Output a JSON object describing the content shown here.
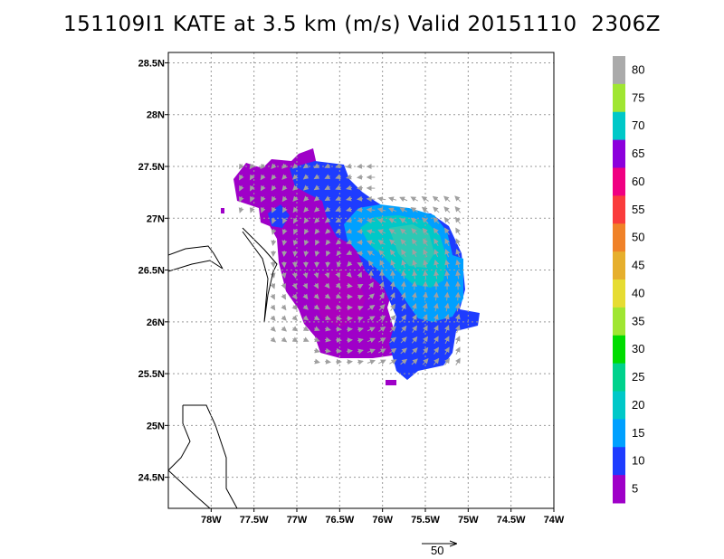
{
  "title": "151109I1 KATE at 3.5 km (m/s) Valid 20151110  2306Z",
  "map": {
    "lon_range": [
      -78.5,
      -74.0
    ],
    "lat_range": [
      24.2,
      28.6
    ],
    "x_ticks": [
      "78W",
      "77.5W",
      "77W",
      "76.5W",
      "76W",
      "75.5W",
      "75W",
      "74.5W",
      "74W"
    ],
    "y_ticks": [
      "28.5N",
      "28N",
      "27.5N",
      "27N",
      "26.5N",
      "26N",
      "25.5N",
      "25N",
      "24.5N"
    ],
    "grid": "dotted"
  },
  "colorbar": {
    "labels": [
      "5",
      "10",
      "15",
      "20",
      "25",
      "30",
      "35",
      "40",
      "45",
      "50",
      "55",
      "60",
      "65",
      "70",
      "75",
      "80"
    ],
    "colors": [
      "#9f00c8",
      "#1e3cff",
      "#00a0ff",
      "#00c8c8",
      "#00d28c",
      "#00dc00",
      "#a0e632",
      "#e6dc32",
      "#e6af2d",
      "#f08228",
      "#fa3c3c",
      "#f00082",
      "#8c00dc",
      "#00c8c8",
      "#a0e632",
      "#aaaaaa"
    ],
    "top_color": "#aaaaaa"
  },
  "reference_vector": {
    "label": "50"
  }
}
